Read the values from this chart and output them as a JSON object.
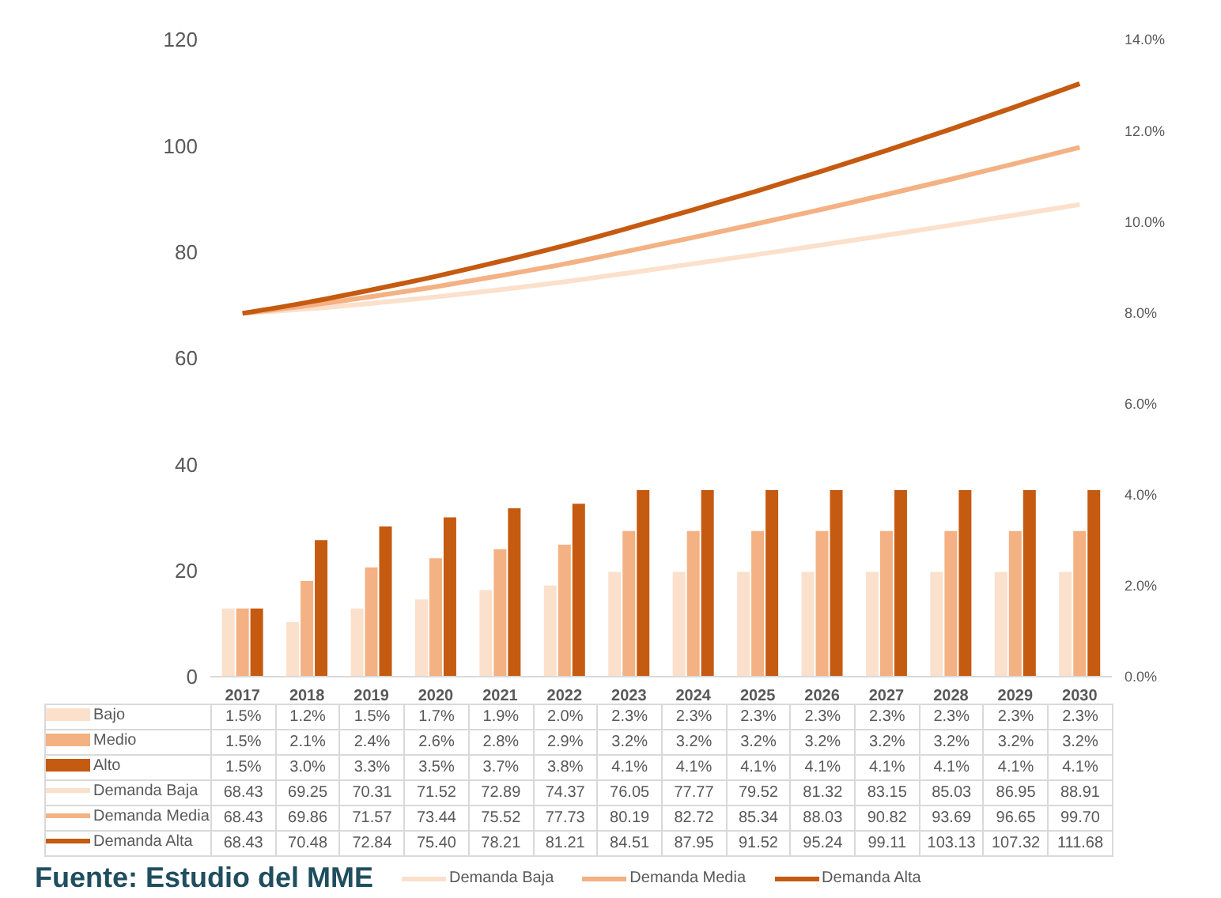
{
  "chart_data": {
    "type": "bar",
    "categories": [
      "2017",
      "2018",
      "2019",
      "2020",
      "2021",
      "2022",
      "2023",
      "2024",
      "2025",
      "2026",
      "2027",
      "2028",
      "2029",
      "2030"
    ],
    "series": [
      {
        "name": "Bajo",
        "axis": "y2",
        "color": "#fbe0cc",
        "values": [
          1.5,
          1.2,
          1.5,
          1.7,
          1.9,
          2.0,
          2.3,
          2.3,
          2.3,
          2.3,
          2.3,
          2.3,
          2.3,
          2.3
        ],
        "value_labels": [
          "1.5%",
          "1.2%",
          "1.5%",
          "1.7%",
          "1.9%",
          "2.0%",
          "2.3%",
          "2.3%",
          "2.3%",
          "2.3%",
          "2.3%",
          "2.3%",
          "2.3%",
          "2.3%"
        ]
      },
      {
        "name": "Medio",
        "axis": "y2",
        "color": "#f4b183",
        "values": [
          1.5,
          2.1,
          2.4,
          2.6,
          2.8,
          2.9,
          3.2,
          3.2,
          3.2,
          3.2,
          3.2,
          3.2,
          3.2,
          3.2
        ],
        "value_labels": [
          "1.5%",
          "2.1%",
          "2.4%",
          "2.6%",
          "2.8%",
          "2.9%",
          "3.2%",
          "3.2%",
          "3.2%",
          "3.2%",
          "3.2%",
          "3.2%",
          "3.2%",
          "3.2%"
        ]
      },
      {
        "name": "Alto",
        "axis": "y2",
        "color": "#c55a11",
        "values": [
          1.5,
          3.0,
          3.3,
          3.5,
          3.7,
          3.8,
          4.1,
          4.1,
          4.1,
          4.1,
          4.1,
          4.1,
          4.1,
          4.1
        ],
        "value_labels": [
          "1.5%",
          "3.0%",
          "3.3%",
          "3.5%",
          "3.7%",
          "3.8%",
          "4.1%",
          "4.1%",
          "4.1%",
          "4.1%",
          "4.1%",
          "4.1%",
          "4.1%",
          "4.1%"
        ]
      },
      {
        "name": "Demanda Baja",
        "type": "line",
        "color": "#fbe0cc",
        "values": [
          68.43,
          69.25,
          70.31,
          71.52,
          72.89,
          74.37,
          76.05,
          77.77,
          79.52,
          81.32,
          83.15,
          85.03,
          86.95,
          88.91
        ],
        "value_labels": [
          "68.43",
          "69.25",
          "70.31",
          "71.52",
          "72.89",
          "74.37",
          "76.05",
          "77.77",
          "79.52",
          "81.32",
          "83.15",
          "85.03",
          "86.95",
          "88.91"
        ]
      },
      {
        "name": "Demanda Media",
        "type": "line",
        "color": "#f4b183",
        "values": [
          68.43,
          69.86,
          71.57,
          73.44,
          75.52,
          77.73,
          80.19,
          82.72,
          85.34,
          88.03,
          90.82,
          93.69,
          96.65,
          99.7
        ],
        "value_labels": [
          "68.43",
          "69.86",
          "71.57",
          "73.44",
          "75.52",
          "77.73",
          "80.19",
          "82.72",
          "85.34",
          "88.03",
          "90.82",
          "93.69",
          "96.65",
          "99.70"
        ]
      },
      {
        "name": "Demanda Alta",
        "type": "line",
        "color": "#c55a11",
        "values": [
          68.43,
          70.48,
          72.84,
          75.4,
          78.21,
          81.21,
          84.51,
          87.95,
          91.52,
          95.24,
          99.11,
          103.13,
          107.32,
          111.68
        ],
        "value_labels": [
          "68.43",
          "70.48",
          "72.84",
          "75.40",
          "78.21",
          "81.21",
          "84.51",
          "87.95",
          "91.52",
          "95.24",
          "99.11",
          "103.13",
          "107.32",
          "111.68"
        ]
      }
    ],
    "ylim": [
      0,
      120
    ],
    "yticks": [
      0,
      20,
      40,
      60,
      80,
      100,
      120
    ],
    "y2lim": [
      0,
      14
    ],
    "y2ticks": [
      {
        "value": 0,
        "label": "0.0%"
      },
      {
        "value": 2,
        "label": "2.0%"
      },
      {
        "value": 4,
        "label": "4.0%"
      },
      {
        "value": 6,
        "label": "6.0%"
      },
      {
        "value": 8,
        "label": "8.0%"
      },
      {
        "value": 10,
        "label": "10.0%"
      },
      {
        "value": 12,
        "label": "12.0%"
      },
      {
        "value": 14,
        "label": "14.0%"
      }
    ],
    "marker": "none",
    "line_style": "solid",
    "legend": "bottom",
    "annotations": [
      "Fuente: Estudio del MME"
    ]
  }
}
